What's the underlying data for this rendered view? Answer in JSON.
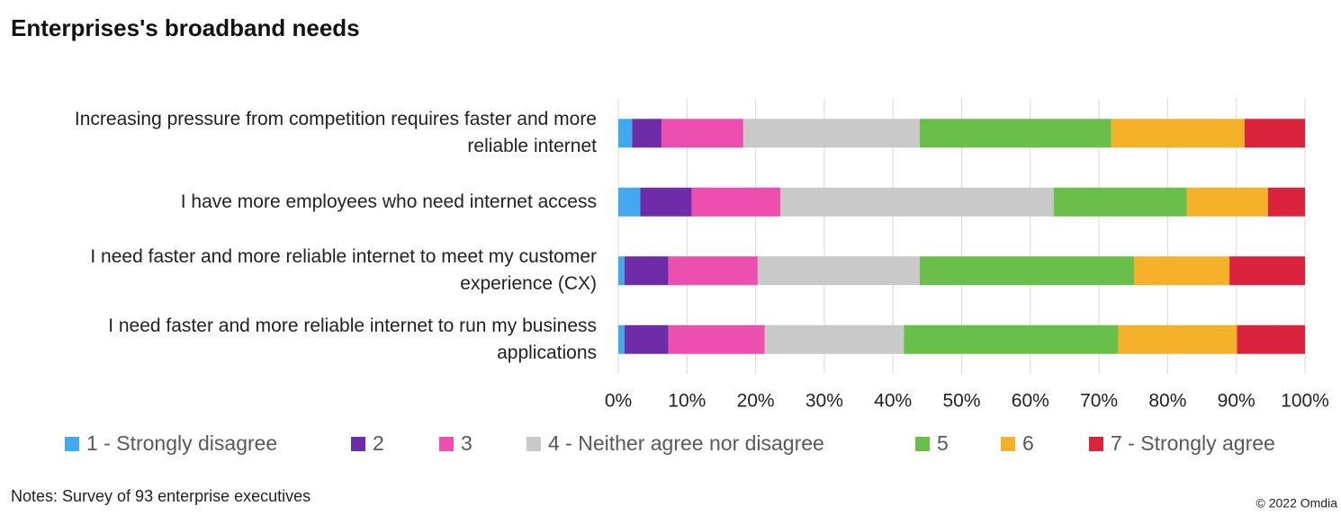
{
  "chart_data": {
    "type": "stacked-barh",
    "title": "Enterprises's broadband needs",
    "categories": [
      "Increasing pressure from competition requires faster and more reliable internet",
      "I have more employees who need internet access",
      "I need faster and more reliable internet to meet my customer experience (CX)",
      "I need faster and more reliable internet to run my business applications"
    ],
    "series": [
      {
        "name": "1 - Strongly disagree",
        "color": "#41a9f0",
        "values": [
          2.0,
          3.2,
          0.9,
          0.9
        ]
      },
      {
        "name": "2",
        "color": "#6e2ca8",
        "values": [
          4.3,
          7.5,
          6.4,
          6.4
        ]
      },
      {
        "name": "3",
        "color": "#ec4fae",
        "values": [
          11.9,
          12.9,
          13.0,
          14.0
        ]
      },
      {
        "name": "4 - Neither agree nor disagree",
        "color": "#c9c9c9",
        "values": [
          25.7,
          39.8,
          23.6,
          20.3
        ]
      },
      {
        "name": "5",
        "color": "#6abf4b",
        "values": [
          27.9,
          19.4,
          31.2,
          31.2
        ]
      },
      {
        "name": "6",
        "color": "#f5b129",
        "values": [
          19.4,
          11.8,
          13.9,
          17.3
        ]
      },
      {
        "name": "7 - Strongly agree",
        "color": "#dc233e",
        "values": [
          8.8,
          5.4,
          11.0,
          9.9
        ]
      }
    ],
    "xlim": [
      0,
      100
    ],
    "xticks": [
      {
        "value": 0,
        "label": "0%"
      },
      {
        "value": 10,
        "label": "10%"
      },
      {
        "value": 20,
        "label": "20%"
      },
      {
        "value": 30,
        "label": "30%"
      },
      {
        "value": 40,
        "label": "40%"
      },
      {
        "value": 50,
        "label": "50%"
      },
      {
        "value": 60,
        "label": "60%"
      },
      {
        "value": 70,
        "label": "70%"
      },
      {
        "value": 80,
        "label": "80%"
      },
      {
        "value": 90,
        "label": "90%"
      },
      {
        "value": 100,
        "label": "100%"
      }
    ],
    "grid": true,
    "legend": "bottom",
    "note": "Notes: Survey of 93 enterprise executives",
    "copyright": "© 2022 Omdia"
  }
}
